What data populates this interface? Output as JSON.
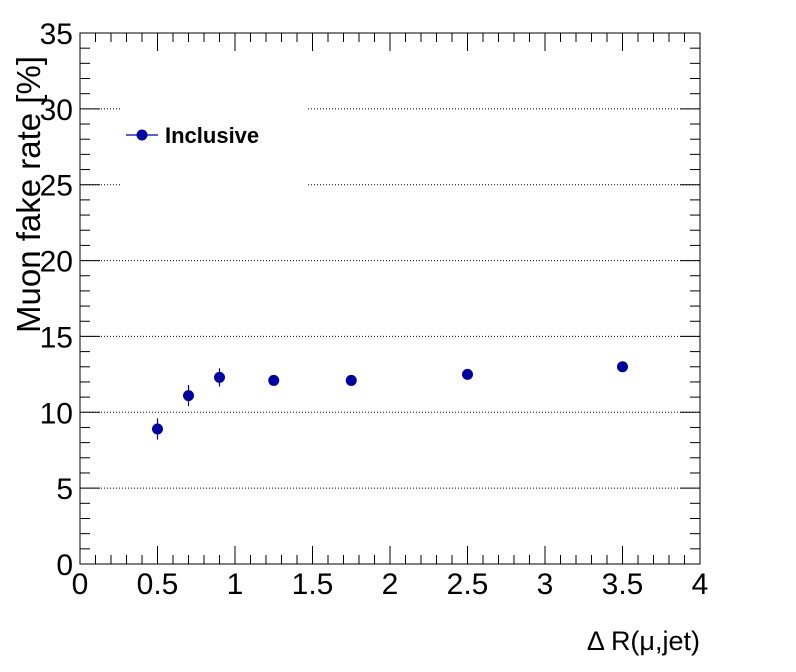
{
  "chart_data": {
    "type": "scatter",
    "xlabel": "Δ R(μ,jet)",
    "ylabel": "Muon fake rate [%]",
    "xlim": [
      0,
      4
    ],
    "ylim": [
      0,
      35
    ],
    "x_ticks": [
      "0",
      "0.5",
      "1",
      "1.5",
      "2",
      "2.5",
      "3",
      "3.5",
      "4"
    ],
    "y_ticks": [
      "0",
      "5",
      "10",
      "15",
      "20",
      "25",
      "30",
      "35"
    ],
    "grid": "horizontal dotted",
    "legend_position": "top-left",
    "colors": {
      "marker": "#0000a0",
      "grid": "#000000"
    },
    "series": [
      {
        "name": "Inclusive",
        "points": [
          {
            "x": 0.5,
            "y": 8.9,
            "err": 0.7
          },
          {
            "x": 0.7,
            "y": 11.1,
            "err": 0.7
          },
          {
            "x": 0.9,
            "y": 12.3,
            "err": 0.6
          },
          {
            "x": 1.25,
            "y": 12.1,
            "err": 0.3
          },
          {
            "x": 1.75,
            "y": 12.1,
            "err": 0.3
          },
          {
            "x": 2.5,
            "y": 12.5,
            "err": 0.2
          },
          {
            "x": 3.5,
            "y": 13.0,
            "err": 0.2
          }
        ]
      }
    ]
  }
}
